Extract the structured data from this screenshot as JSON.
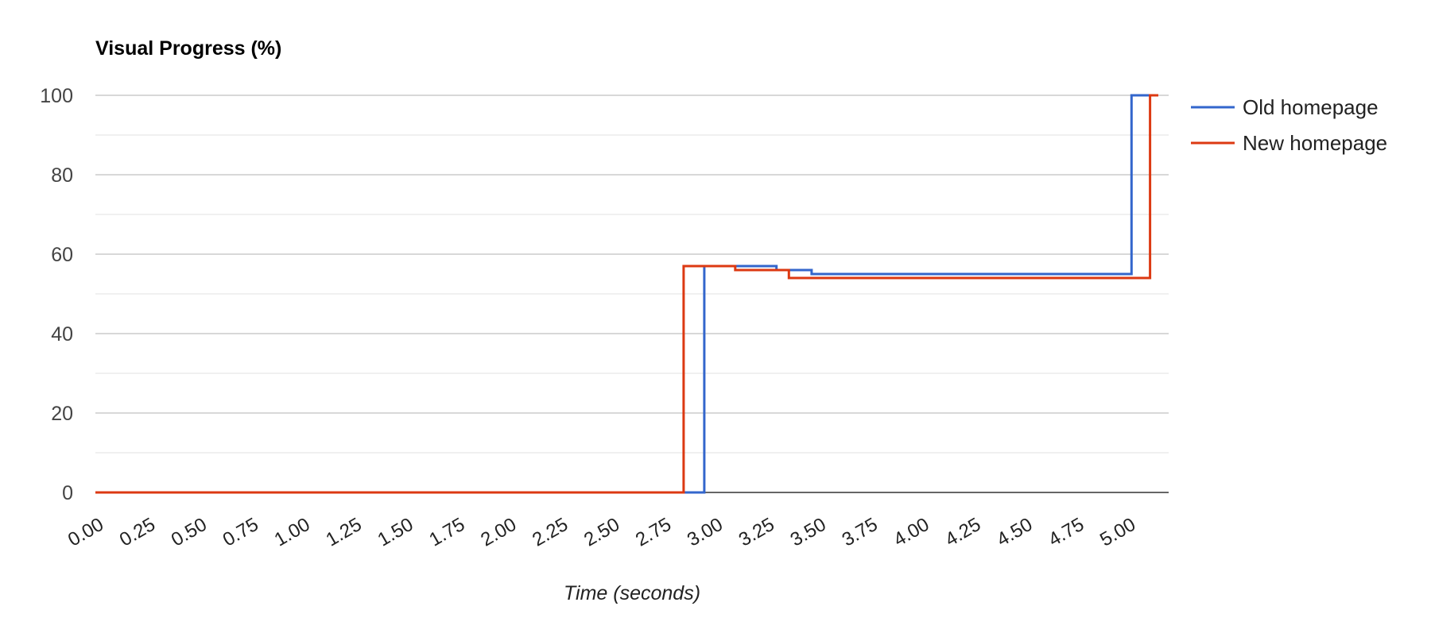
{
  "chart_data": {
    "type": "line",
    "title": "Visual Progress (%)",
    "xlabel": "Time (seconds)",
    "ylabel": "",
    "xlim": [
      0,
      5.2
    ],
    "ylim": [
      0,
      100
    ],
    "x_ticks": [
      "0.00",
      "0.25",
      "0.50",
      "0.75",
      "1.00",
      "1.25",
      "1.50",
      "1.75",
      "2.00",
      "2.25",
      "2.50",
      "2.75",
      "3.00",
      "3.25",
      "3.50",
      "3.75",
      "4.00",
      "4.25",
      "4.50",
      "4.75",
      "5.00"
    ],
    "y_ticks": [
      "0",
      "20",
      "40",
      "60",
      "80",
      "100"
    ],
    "grid": true,
    "legend_position": "right",
    "series": [
      {
        "name": "Old homepage",
        "color": "#3366cc",
        "points": [
          [
            0,
            0
          ],
          [
            2.95,
            0
          ],
          [
            2.95,
            57
          ],
          [
            3.3,
            57
          ],
          [
            3.3,
            56
          ],
          [
            3.47,
            56
          ],
          [
            3.47,
            55
          ],
          [
            5.02,
            55
          ],
          [
            5.02,
            100
          ],
          [
            5.11,
            100
          ]
        ]
      },
      {
        "name": "New homepage",
        "color": "#dc3912",
        "points": [
          [
            0,
            0
          ],
          [
            2.85,
            0
          ],
          [
            2.85,
            57
          ],
          [
            3.1,
            57
          ],
          [
            3.1,
            56
          ],
          [
            3.36,
            56
          ],
          [
            3.36,
            54
          ],
          [
            5.11,
            54
          ],
          [
            5.11,
            100
          ],
          [
            5.15,
            100
          ]
        ]
      }
    ]
  }
}
